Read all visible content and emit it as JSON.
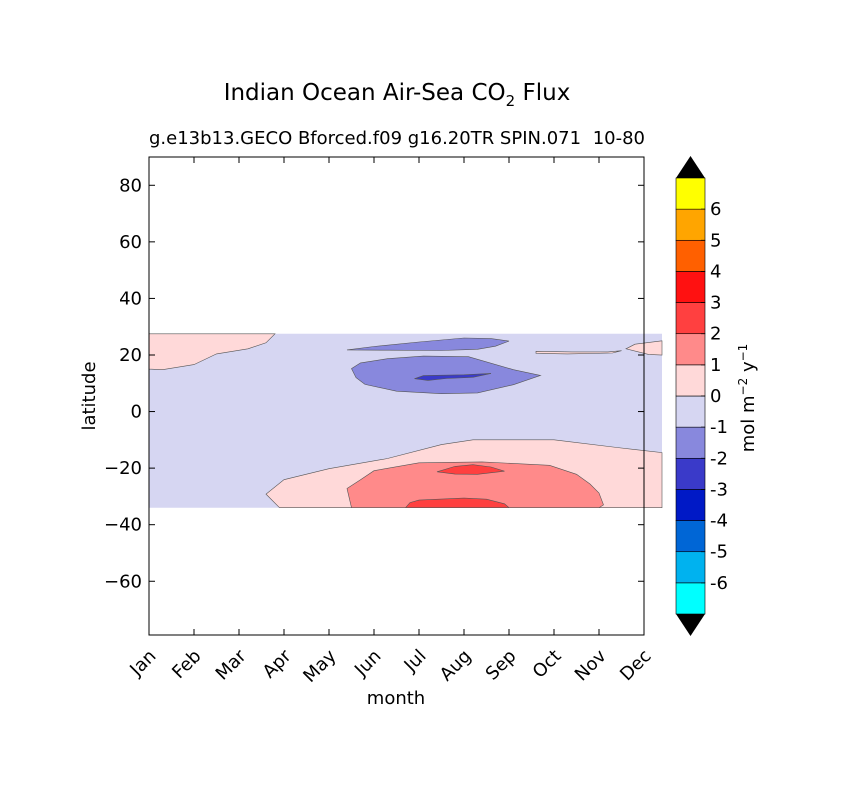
{
  "chart_data": {
    "type": "heatmap",
    "title_main": "Indian Ocean Air-Sea CO",
    "title_sub": "2",
    "title_tail": " Flux",
    "subtitle": "g.e13b13.GECO Bforced.f09 g16.20TR SPIN.071",
    "subtitle_overlap": "10-80",
    "xlabel": "month",
    "ylabel": "latitude",
    "x_categories": [
      "Jan",
      "Feb",
      "Mar",
      "Apr",
      "May",
      "Jun",
      "Jul",
      "Aug",
      "Sep",
      "Oct",
      "Nov",
      "Dec"
    ],
    "y_ticks": [
      80,
      60,
      40,
      20,
      0,
      -20,
      -40,
      -60
    ],
    "y_tick_labels": [
      "80",
      "60",
      "40",
      "20",
      "0",
      "−20",
      "−40",
      "−60"
    ],
    "ylim": [
      -79,
      90
    ],
    "data_lat_range": [
      -34,
      27.5
    ],
    "colorbar": {
      "label_main": "mol m",
      "label_exp1": "−2",
      "label_mid": "  y",
      "label_exp2": "−1",
      "extend": "both",
      "extend_color": "#000000",
      "levels": [
        -7,
        -6,
        -5,
        -4,
        -3,
        -2,
        -1,
        0,
        1,
        2,
        3,
        4,
        5,
        6,
        7
      ],
      "colors": [
        "#00ffff",
        "#00b2ef",
        "#0066d6",
        "#0019c6",
        "#3a3ac9",
        "#8888dd",
        "#d6d6f2",
        "#ffd9d9",
        "#ff8a8a",
        "#ff4040",
        "#ff1111",
        "#ff6000",
        "#ffa500",
        "#ffff00"
      ],
      "tick_values": [
        6,
        5,
        4,
        3,
        2,
        1,
        0,
        -1,
        -2,
        -3,
        -4,
        -5,
        -6
      ],
      "tick_labels": [
        "6",
        "5",
        "4",
        "3",
        "2",
        "1",
        "0",
        "-1",
        "-2",
        "-3",
        "-4",
        "-5",
        "-6"
      ]
    },
    "regions": [
      {
        "name": "background",
        "value_range": [
          -1,
          0
        ],
        "color": "#d6d6f2",
        "points": [
          [
            0,
            27.5
          ],
          [
            11.4,
            27.5
          ],
          [
            11.4,
            -34
          ],
          [
            0,
            -34
          ]
        ]
      },
      {
        "name": "north-west-positive",
        "value_range": [
          0,
          1
        ],
        "color": "#ffd9d9",
        "points": [
          [
            0,
            27.5
          ],
          [
            2.8,
            27.5
          ],
          [
            2.6,
            24.3
          ],
          [
            2.2,
            22.2
          ],
          [
            1.5,
            20.4
          ],
          [
            1.0,
            16.6
          ],
          [
            0.3,
            14.8
          ],
          [
            0,
            15
          ]
        ]
      },
      {
        "name": "north-east-positive",
        "value_range": [
          0,
          1
        ],
        "color": "#ffd9d9",
        "points": [
          [
            8.6,
            21.3
          ],
          [
            9.4,
            21.1
          ],
          [
            10.2,
            21.1
          ],
          [
            10.5,
            21.5
          ],
          [
            10.3,
            20.7
          ],
          [
            9.3,
            20.4
          ],
          [
            8.6,
            20.6
          ]
        ]
      },
      {
        "name": "east-edge-positive",
        "value_range": [
          0,
          1
        ],
        "color": "#ffd9d9",
        "points": [
          [
            11.4,
            25.0
          ],
          [
            10.8,
            23.8
          ],
          [
            10.6,
            22.2
          ],
          [
            11.1,
            20.2
          ],
          [
            11.4,
            20.0
          ]
        ]
      },
      {
        "name": "south-positive",
        "value_range": [
          0,
          1
        ],
        "color": "#ffd9d9",
        "points": [
          [
            2.9,
            -34
          ],
          [
            2.6,
            -29.2
          ],
          [
            3.0,
            -24.1
          ],
          [
            4.0,
            -20.2
          ],
          [
            5.3,
            -16.6
          ],
          [
            6.5,
            -11.7
          ],
          [
            7.2,
            -10.0
          ],
          [
            9.0,
            -10.0
          ],
          [
            10.4,
            -12.7
          ],
          [
            11.4,
            -14.5
          ],
          [
            11.4,
            -34
          ]
        ]
      },
      {
        "name": "south-1-2",
        "value_range": [
          1,
          2
        ],
        "color": "#ff8a8a",
        "points": [
          [
            4.5,
            -34
          ],
          [
            4.4,
            -27.2
          ],
          [
            4.7,
            -24.1
          ],
          [
            5.0,
            -20.9
          ],
          [
            6.0,
            -18.1
          ],
          [
            7.4,
            -17.8
          ],
          [
            8.9,
            -19.0
          ],
          [
            9.5,
            -22.2
          ],
          [
            9.8,
            -25.6
          ],
          [
            10.0,
            -28.8
          ],
          [
            10.1,
            -33.0
          ],
          [
            10.0,
            -34
          ]
        ]
      },
      {
        "name": "south-deep-2-3",
        "value_range": [
          2,
          3
        ],
        "color": "#ff4040",
        "points": [
          [
            5.7,
            -34
          ],
          [
            5.8,
            -32.2
          ],
          [
            6.0,
            -31.3
          ],
          [
            7.0,
            -30.6
          ],
          [
            7.5,
            -31.0
          ],
          [
            7.9,
            -32.6
          ],
          [
            8.0,
            -34
          ]
        ]
      },
      {
        "name": "south-blob-2-3",
        "value_range": [
          2,
          3
        ],
        "color": "#ff4040",
        "points": [
          [
            6.4,
            -21.3
          ],
          [
            6.8,
            -19.4
          ],
          [
            7.2,
            -18.8
          ],
          [
            7.6,
            -19.6
          ],
          [
            7.9,
            -21.1
          ],
          [
            7.3,
            -22.2
          ],
          [
            6.8,
            -22.1
          ]
        ]
      },
      {
        "name": "north-negative-1-2",
        "value_range": [
          -2,
          -1
        ],
        "color": "#8888dd",
        "points": [
          [
            4.4,
            21.8
          ],
          [
            5.0,
            23.0
          ],
          [
            6.0,
            24.6
          ],
          [
            7.0,
            26.0
          ],
          [
            7.6,
            25.8
          ],
          [
            8.0,
            24.9
          ],
          [
            7.7,
            23.1
          ],
          [
            7.3,
            22.0
          ],
          [
            6.5,
            21.6
          ],
          [
            5.3,
            21.7
          ]
        ]
      },
      {
        "name": "north-negative-1-2-lower",
        "value_range": [
          -2,
          -1
        ],
        "color": "#8888dd",
        "points": [
          [
            4.5,
            15.2
          ],
          [
            4.6,
            12.0
          ],
          [
            4.8,
            9.6
          ],
          [
            5.5,
            7.2
          ],
          [
            6.5,
            6.3
          ],
          [
            7.3,
            6.6
          ],
          [
            8.1,
            9.5
          ],
          [
            8.7,
            12.8
          ],
          [
            8.1,
            14.8
          ],
          [
            7.1,
            19.4
          ],
          [
            6.1,
            19.6
          ],
          [
            5.3,
            18.7
          ],
          [
            4.7,
            17.2
          ]
        ]
      },
      {
        "name": "north-core-2-3",
        "value_range": [
          -3,
          -2
        ],
        "color": "#3a3ac9",
        "points": [
          [
            5.9,
            11.6
          ],
          [
            6.1,
            12.7
          ],
          [
            7.0,
            13.0
          ],
          [
            7.6,
            13.5
          ],
          [
            7.2,
            12.1
          ],
          [
            6.6,
            11.7
          ],
          [
            6.2,
            11.0
          ]
        ]
      }
    ]
  }
}
